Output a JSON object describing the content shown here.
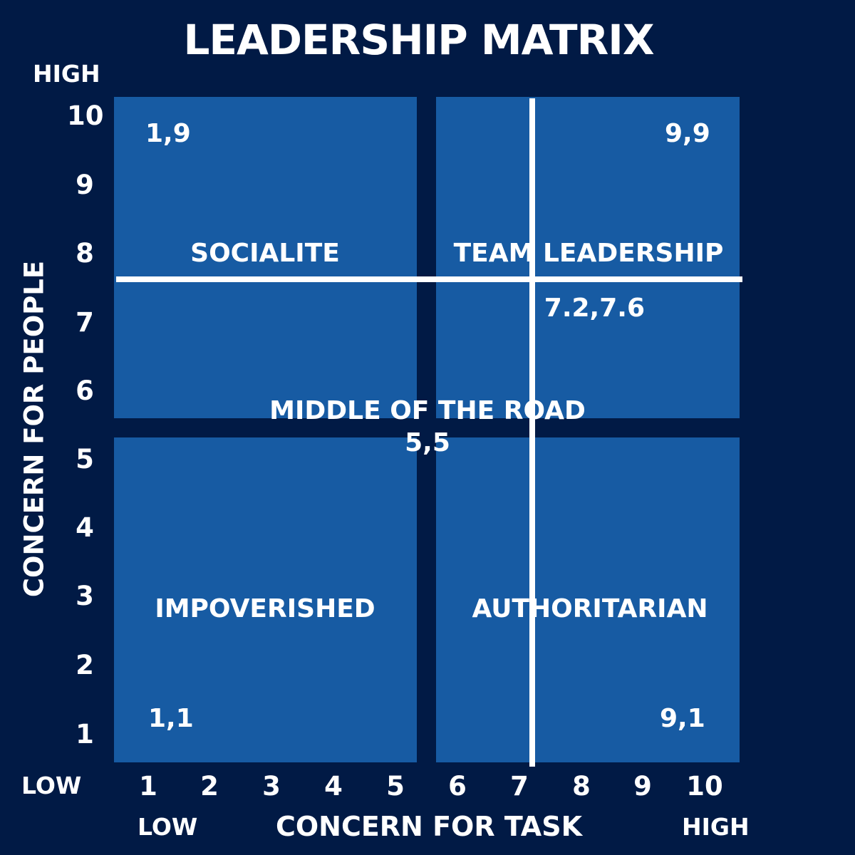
{
  "title": "LEADERSHIP MATRIX",
  "y_axis": {
    "label": "CONCERN FOR PEOPLE",
    "high": "HIGH",
    "low": "LOW",
    "ticks": [
      "10",
      "9",
      "8",
      "7",
      "6",
      "5",
      "4",
      "3",
      "2",
      "1"
    ]
  },
  "x_axis": {
    "label": "CONCERN FOR TASK",
    "low": "LOW",
    "high": "HIGH",
    "ticks": [
      "1",
      "2",
      "3",
      "4",
      "5",
      "6",
      "7",
      "8",
      "9",
      "10"
    ]
  },
  "quadrants": {
    "top_left": {
      "name": "SOCIALITE",
      "coord": "1,9"
    },
    "top_right": {
      "name": "TEAM LEADERSHIP",
      "coord": "9,9"
    },
    "bottom_left": {
      "name": "IMPOVERISHED",
      "coord": "1,1"
    },
    "bottom_right": {
      "name": "AUTHORITARIAN",
      "coord": "9,1"
    }
  },
  "center": {
    "name": "MIDDLE OF THE ROAD",
    "coord": "5,5"
  },
  "marker": {
    "label": "7.2,7.6",
    "x": 7.2,
    "y": 7.6
  },
  "colors": {
    "background": "#011a45",
    "quadrant": "#175ba3",
    "text": "#ffffff",
    "crosshair": "#ffffff"
  }
}
